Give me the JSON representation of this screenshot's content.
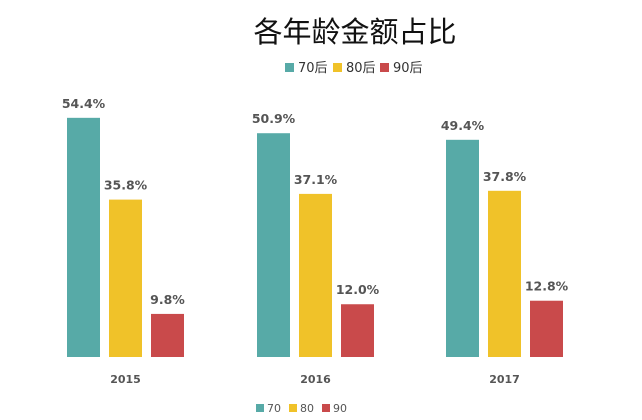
{
  "chart_data": {
    "type": "bar",
    "title": "各年龄金额占比",
    "categories": [
      "2015",
      "2016",
      "2017"
    ],
    "series": [
      {
        "name": "70后",
        "short_name": "70",
        "color": "#57aaa7",
        "values": [
          54.4,
          50.9,
          49.4
        ],
        "labels": [
          "54.4%",
          "50.9%",
          "49.4%"
        ]
      },
      {
        "name": "80后",
        "short_name": "80",
        "color": "#f0c229",
        "values": [
          35.8,
          37.1,
          37.8
        ],
        "labels": [
          "35.8%",
          "37.1%",
          "37.8%"
        ]
      },
      {
        "name": "90后",
        "short_name": "90",
        "color": "#c94a4b",
        "values": [
          9.8,
          12.0,
          12.8
        ],
        "labels": [
          "9.8%",
          "12.0%",
          "12.8%"
        ]
      }
    ],
    "ylim": [
      0,
      58
    ],
    "grid": false,
    "legend_placement": [
      "top-center",
      "bottom-center"
    ]
  }
}
